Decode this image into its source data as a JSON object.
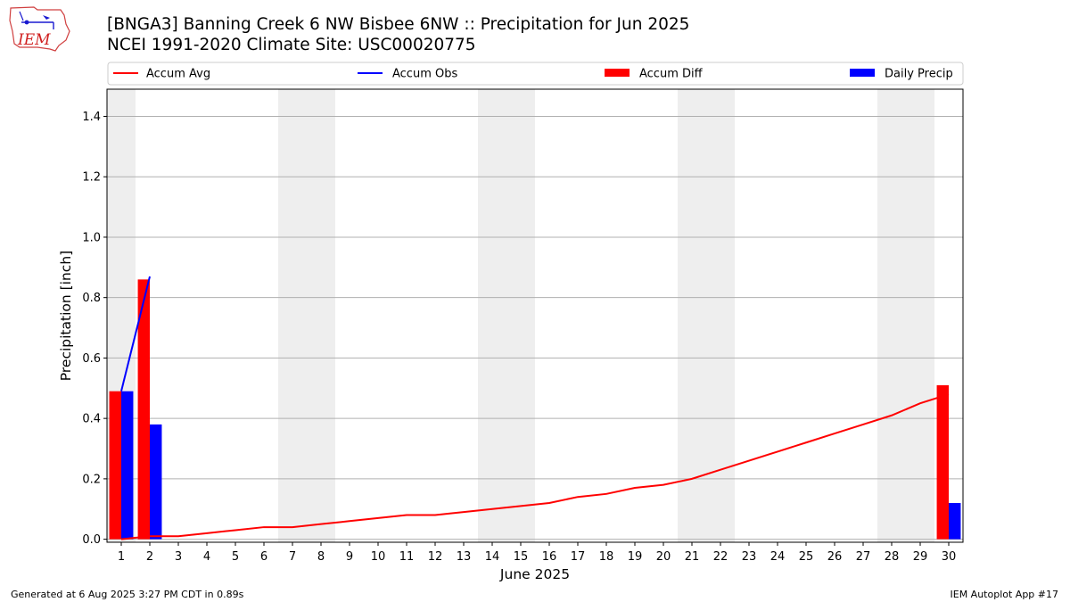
{
  "title_line1": "[BNGA3] Banning Creek 6 NW Bisbee 6NW :: Precipitation for Jun 2025",
  "title_line2": "NCEI 1991-2020 Climate Site: USC00020775",
  "footer_left": "Generated at 6 Aug 2025 3:27 PM CDT in 0.89s",
  "footer_right": "IEM Autoplot App #17",
  "logo_text": "IEM",
  "colors": {
    "accum_avg": "#ff0000",
    "accum_obs": "#0000ff",
    "accum_diff": "#ff0000",
    "daily_precip": "#0000ff",
    "weekend_band": "#eeeeee",
    "grid": "#b0b0b0"
  },
  "chart_data": {
    "type": "bar",
    "xlabel": "June 2025",
    "ylabel": "Precipitation [inch]",
    "ylim": [
      -0.01,
      1.49
    ],
    "xlim": [
      0.5,
      30.5
    ],
    "yticks": [
      "0.0",
      "0.2",
      "0.4",
      "0.6",
      "0.8",
      "1.0",
      "1.2",
      "1.4"
    ],
    "x": [
      1,
      2,
      3,
      4,
      5,
      6,
      7,
      8,
      9,
      10,
      11,
      12,
      13,
      14,
      15,
      16,
      17,
      18,
      19,
      20,
      21,
      22,
      23,
      24,
      25,
      26,
      27,
      28,
      29,
      30
    ],
    "xticks": [
      "1",
      "2",
      "3",
      "4",
      "5",
      "6",
      "7",
      "8",
      "9",
      "10",
      "11",
      "12",
      "13",
      "14",
      "15",
      "16",
      "17",
      "18",
      "19",
      "20",
      "21",
      "22",
      "23",
      "24",
      "25",
      "26",
      "27",
      "28",
      "29",
      "30"
    ],
    "grid": "horizontal",
    "weekend_days": [
      1,
      7,
      8,
      14,
      15,
      21,
      22,
      28,
      29
    ],
    "legend": {
      "placement": "top",
      "entries": [
        "Accum Avg",
        "Accum Obs",
        "Accum Diff",
        "Daily Precip"
      ]
    },
    "series": [
      {
        "name": "Accum Avg",
        "type": "line",
        "values": [
          0.0,
          0.01,
          0.01,
          0.02,
          0.03,
          0.04,
          0.04,
          0.05,
          0.06,
          0.07,
          0.08,
          0.08,
          0.09,
          0.1,
          0.11,
          0.12,
          0.14,
          0.15,
          0.17,
          0.18,
          0.2,
          0.23,
          0.26,
          0.29,
          0.32,
          0.35,
          0.38,
          0.41,
          0.45,
          0.48
        ]
      },
      {
        "name": "Accum Obs",
        "type": "line",
        "x": [
          1,
          2
        ],
        "values": [
          0.49,
          0.87
        ]
      },
      {
        "name": "Accum Diff",
        "type": "bar",
        "x": [
          1,
          2,
          30
        ],
        "values": [
          0.49,
          0.86,
          0.51
        ]
      },
      {
        "name": "Daily Precip",
        "type": "bar",
        "x": [
          1,
          2,
          30
        ],
        "values": [
          0.49,
          0.38,
          0.12
        ]
      }
    ]
  }
}
